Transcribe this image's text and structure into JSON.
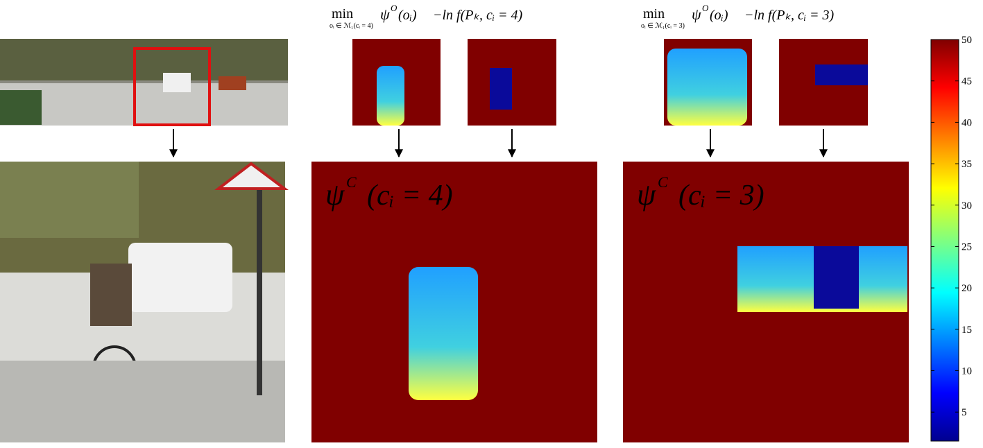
{
  "panels": [
    {
      "formula": {
        "min": "min",
        "subscript": "oᵢ ∈ ℳ₁(cᵢ = 4)",
        "psi": "ψ",
        "psi_sup": "O",
        "psi_arg": "(oᵢ)",
        "unary": "−ln f(Pₖ, cᵢ = 4)"
      },
      "label": {
        "psi": "ψ",
        "sup": "C",
        "arg": "(cᵢ = 4)"
      }
    },
    {
      "formula": {
        "min": "min",
        "subscript": "oᵢ ∈ ℳ₁(cᵢ = 3)",
        "psi": "ψ",
        "psi_sup": "O",
        "psi_arg": "(oᵢ)",
        "unary": "−ln f(Pₖ, cᵢ = 3)"
      },
      "label": {
        "psi": "ψ",
        "sup": "C",
        "arg": "(cᵢ = 3)"
      }
    }
  ],
  "colorbar": {
    "lim": [
      1.5,
      50
    ],
    "ticks": [
      5,
      10,
      15,
      20,
      25,
      30,
      35,
      40,
      45,
      50
    ]
  }
}
